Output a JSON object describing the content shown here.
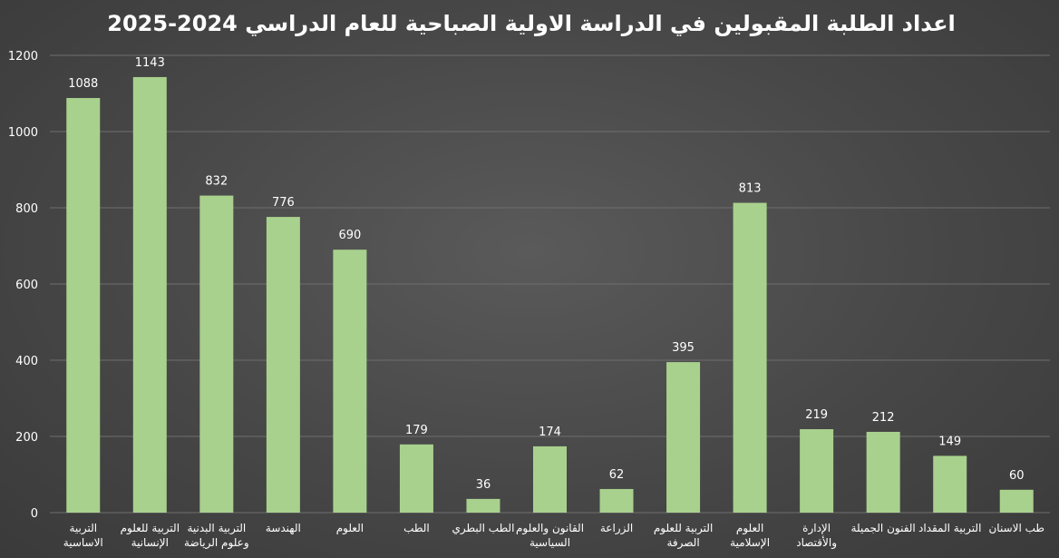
{
  "chart_data": {
    "type": "bar",
    "title": "اعداد الطلبة المقبولين في الدراسة الاولية الصباحية للعام الدراسي 2024-2025",
    "xlabel": "",
    "ylabel": "",
    "ylim": [
      0,
      1200
    ],
    "yticks": [
      "0",
      "200",
      "400",
      "600",
      "800",
      "1000",
      "1200"
    ],
    "grid": true,
    "bar_color": "#a9d18e",
    "categories": [
      [
        "التربية",
        "الاساسية"
      ],
      [
        "التربية للعلوم",
        "الإنسانية"
      ],
      [
        "التربية البدنية",
        "وعلوم الرياضة"
      ],
      [
        "الهندسة"
      ],
      [
        "العلوم"
      ],
      [
        "الطب"
      ],
      [
        "الطب البطري"
      ],
      [
        "القانون والعلوم",
        "السياسية"
      ],
      [
        "الزراعة"
      ],
      [
        "التربية للعلوم",
        "الصرفة"
      ],
      [
        "العلوم",
        "الإسلامية"
      ],
      [
        "الإدارة",
        "والأقتصاد"
      ],
      [
        "الفنون الجميلة"
      ],
      [
        "التربية المقداد"
      ],
      [
        "طب الاسنان"
      ]
    ],
    "values": [
      1088,
      1143,
      832,
      776,
      690,
      179,
      36,
      174,
      62,
      395,
      813,
      219,
      212,
      149,
      60
    ]
  }
}
